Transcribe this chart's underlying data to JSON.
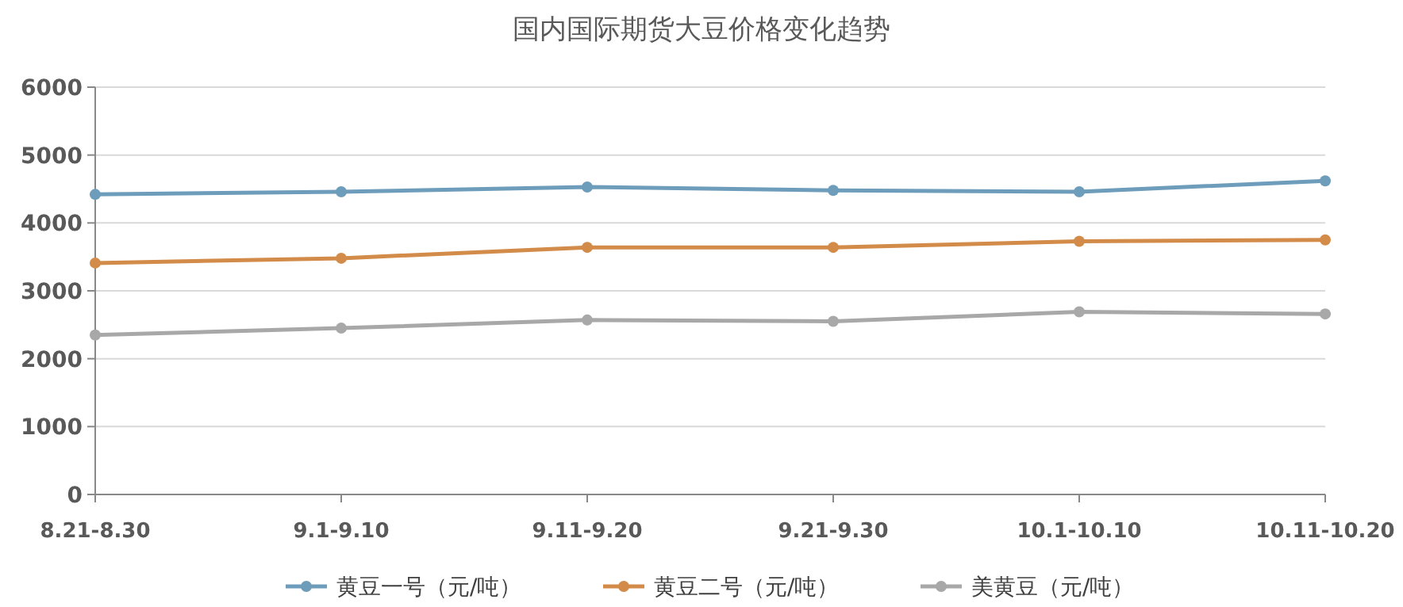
{
  "chart_data": {
    "type": "line",
    "title": "国内国际期货大豆价格变化趋势",
    "categories": [
      "8.21-8.30",
      "9.1-9.10",
      "9.11-9.20",
      "9.21-9.30",
      "10.1-10.10",
      "10.11-10.20"
    ],
    "series": [
      {
        "name": "黄豆一号（元/吨）",
        "color": "#6e9dbb",
        "values": [
          4420,
          4460,
          4530,
          4480,
          4460,
          4620
        ]
      },
      {
        "name": "黄豆二号（元/吨）",
        "color": "#d38b4a",
        "values": [
          3410,
          3480,
          3640,
          3640,
          3730,
          3750
        ]
      },
      {
        "name": "美黄豆（元/吨）",
        "color": "#a8a8a8",
        "values": [
          2350,
          2450,
          2570,
          2550,
          2690,
          2660
        ]
      }
    ],
    "ylim": [
      0,
      6000
    ],
    "yticks": [
      0,
      1000,
      2000,
      3000,
      4000,
      5000,
      6000
    ],
    "grid": "y",
    "legend": "bottom",
    "marker": "circle",
    "line_style": "solid"
  }
}
